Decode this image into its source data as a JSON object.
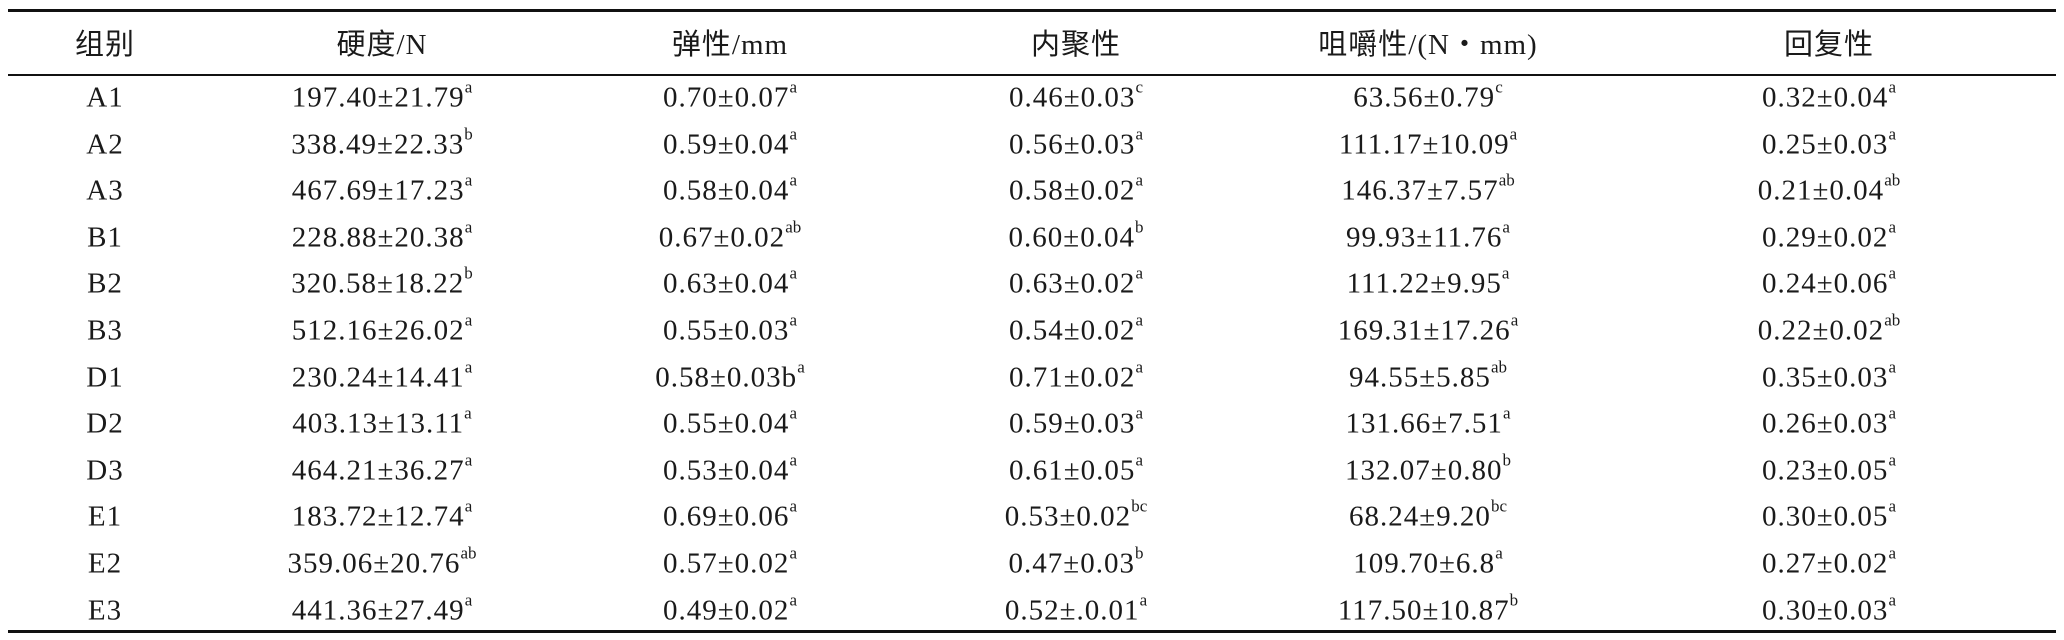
{
  "table": {
    "header": [
      "组别",
      "硬度/N",
      "弹性/mm",
      "内聚性",
      "咀嚼性/(N・mm)",
      "回复性"
    ],
    "rows": [
      [
        "A1",
        {
          "text": "197.40±21.79",
          "sup": "a"
        },
        {
          "text": "0.70±0.07",
          "sup": "a"
        },
        {
          "text": "0.46±0.03",
          "sup": "c"
        },
        {
          "text": "63.56±0.79",
          "sup": "c"
        },
        {
          "text": "0.32±0.04",
          "sup": "a"
        }
      ],
      [
        "A2",
        {
          "text": "338.49±22.33",
          "sup": "b"
        },
        {
          "text": "0.59±0.04",
          "sup": "a"
        },
        {
          "text": "0.56±0.03",
          "sup": "a"
        },
        {
          "text": "111.17±10.09",
          "sup": "a"
        },
        {
          "text": "0.25±0.03",
          "sup": "a"
        }
      ],
      [
        "A3",
        {
          "text": "467.69±17.23",
          "sup": "a"
        },
        {
          "text": "0.58±0.04",
          "sup": "a"
        },
        {
          "text": "0.58±0.02",
          "sup": "a"
        },
        {
          "text": "146.37±7.57",
          "sup": "ab"
        },
        {
          "text": "0.21±0.04",
          "sup": "ab"
        }
      ],
      [
        "B1",
        {
          "text": "228.88±20.38",
          "sup": "a"
        },
        {
          "text": "0.67±0.02",
          "sup": "ab"
        },
        {
          "text": "0.60±0.04",
          "sup": "b"
        },
        {
          "text": "99.93±11.76",
          "sup": "a"
        },
        {
          "text": "0.29±0.02",
          "sup": "a"
        }
      ],
      [
        "B2",
        {
          "text": "320.58±18.22",
          "sup": "b"
        },
        {
          "text": "0.63±0.04",
          "sup": "a"
        },
        {
          "text": "0.63±0.02",
          "sup": "a"
        },
        {
          "text": "111.22±9.95",
          "sup": "a"
        },
        {
          "text": "0.24±0.06",
          "sup": "a"
        }
      ],
      [
        "B3",
        {
          "text": "512.16±26.02",
          "sup": "a"
        },
        {
          "text": "0.55±0.03",
          "sup": "a"
        },
        {
          "text": "0.54±0.02",
          "sup": "a"
        },
        {
          "text": "169.31±17.26",
          "sup": "a"
        },
        {
          "text": "0.22±0.02",
          "sup": "ab"
        }
      ],
      [
        "D1",
        {
          "text": "230.24±14.41",
          "sup": "a"
        },
        {
          "text": "0.58±0.03b",
          "sup": "a"
        },
        {
          "text": "0.71±0.02",
          "sup": "a"
        },
        {
          "text": "94.55±5.85",
          "sup": "ab"
        },
        {
          "text": "0.35±0.03",
          "sup": "a"
        }
      ],
      [
        "D2",
        {
          "text": "403.13±13.11",
          "sup": "a"
        },
        {
          "text": "0.55±0.04",
          "sup": "a"
        },
        {
          "text": "0.59±0.03",
          "sup": "a"
        },
        {
          "text": "131.66±7.51",
          "sup": "a"
        },
        {
          "text": "0.26±0.03",
          "sup": "a"
        }
      ],
      [
        "D3",
        {
          "text": "464.21±36.27",
          "sup": "a"
        },
        {
          "text": "0.53±0.04",
          "sup": "a"
        },
        {
          "text": "0.61±0.05",
          "sup": "a"
        },
        {
          "text": "132.07±0.80",
          "sup": "b"
        },
        {
          "text": "0.23±0.05",
          "sup": "a"
        }
      ],
      [
        "E1",
        {
          "text": "183.72±12.74",
          "sup": "a"
        },
        {
          "text": "0.69±0.06",
          "sup": "a"
        },
        {
          "text": "0.53±0.02",
          "sup": "bc"
        },
        {
          "text": "68.24±9.20",
          "sup": "bc"
        },
        {
          "text": "0.30±0.05",
          "sup": "a"
        }
      ],
      [
        "E2",
        {
          "text": "359.06±20.76",
          "sup": "ab"
        },
        {
          "text": "0.57±0.02",
          "sup": "a"
        },
        {
          "text": "0.47±0.03",
          "sup": "b"
        },
        {
          "text": "109.70±6.8",
          "sup": "a"
        },
        {
          "text": "0.27±0.02",
          "sup": "a"
        }
      ],
      [
        "E3",
        {
          "text": "441.36±27.49",
          "sup": "a"
        },
        {
          "text": "0.49±0.02",
          "sup": "a"
        },
        {
          "text": "0.52±.0.01",
          "sup": "a"
        },
        {
          "text": "117.50±10.87",
          "sup": "b"
        },
        {
          "text": "0.30±0.03",
          "sup": "a"
        }
      ]
    ]
  }
}
